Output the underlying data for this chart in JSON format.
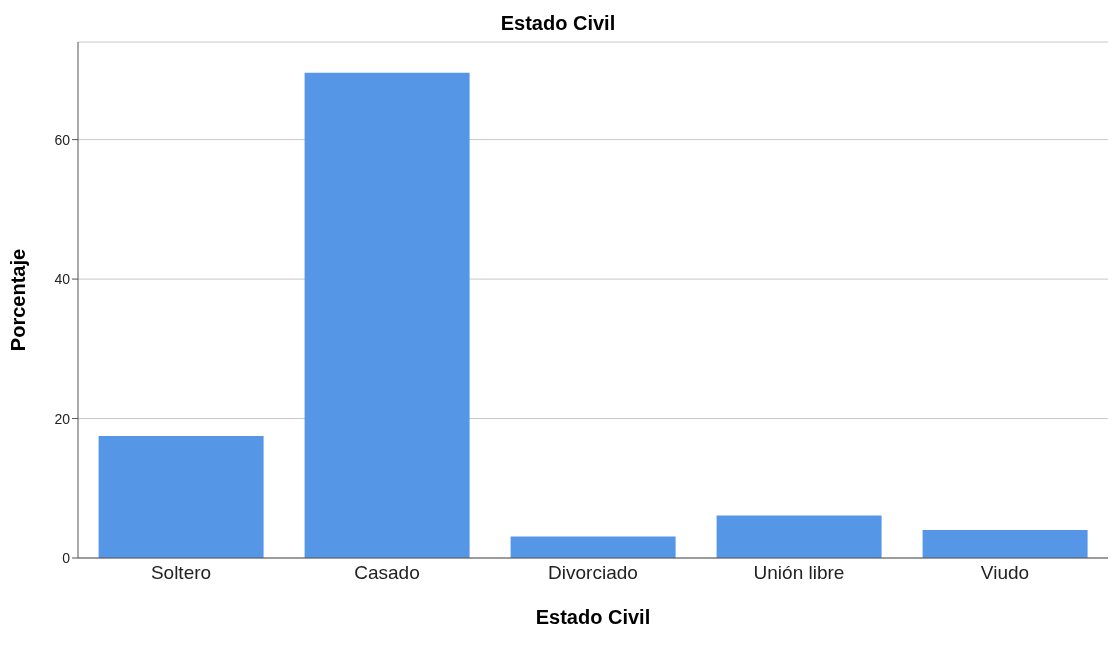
{
  "chart_data": {
    "type": "bar",
    "title": "Estado Civil",
    "xlabel": "Estado Civil",
    "ylabel": "Porcentaje",
    "categories": [
      "Soltero",
      "Casado",
      "Divorciado",
      "Unión libre",
      "Viudo"
    ],
    "values": [
      17.5,
      69.6,
      3.1,
      6.1,
      4.0
    ],
    "color": "#5596e6",
    "ylim": [
      0,
      74
    ],
    "yticks": [
      0,
      20,
      40,
      60
    ],
    "grid": "y"
  }
}
